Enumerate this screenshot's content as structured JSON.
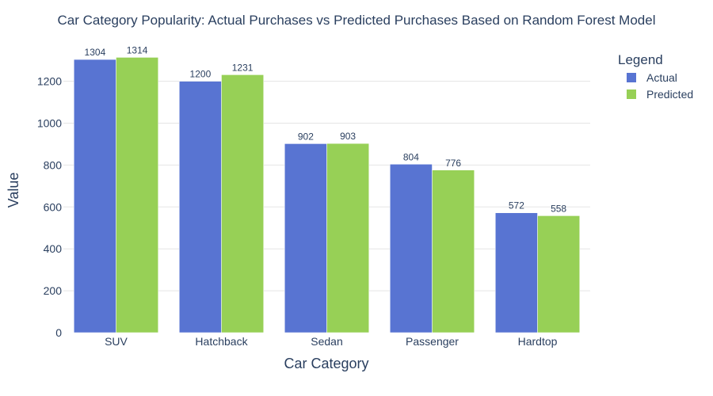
{
  "chart_data": {
    "type": "bar",
    "title": "Car Category Popularity: Actual Purchases vs Predicted Purchases Based on Random Forest Model",
    "xlabel": "Car Category",
    "ylabel": "Value",
    "categories": [
      "SUV",
      "Hatchback",
      "Sedan",
      "Passenger",
      "Hardtop"
    ],
    "series": [
      {
        "name": "Actual",
        "values": [
          1304,
          1200,
          902,
          804,
          572
        ],
        "color": "#5874d2"
      },
      {
        "name": "Predicted",
        "values": [
          1314,
          1231,
          903,
          776,
          558
        ],
        "color": "#97d056"
      }
    ],
    "ylim": [
      0,
      1380
    ],
    "yticks": [
      0,
      200,
      400,
      600,
      800,
      1000,
      1200
    ],
    "grid": true,
    "legend": {
      "title": "Legend",
      "placement": "top-right"
    }
  }
}
